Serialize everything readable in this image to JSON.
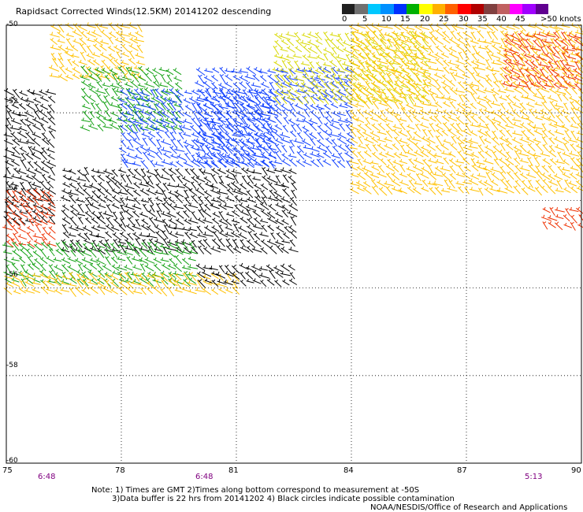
{
  "title": "Rapidsact Corrected Winds(12.5KM) 20141202 descending",
  "legend": {
    "colors": [
      "#202020",
      "#707070",
      "#00c8ff",
      "#0090ff",
      "#0030ff",
      "#00b000",
      "#ffff00",
      "#ffb000",
      "#ff6000",
      "#ff0000",
      "#b00000",
      "#804040",
      "#c06060",
      "#ff00ff",
      "#a000ff",
      "#600090"
    ],
    "labels": [
      "0",
      "5",
      "10",
      "15",
      "20",
      "25",
      "30",
      "35",
      "40",
      "45",
      ">50 knots"
    ]
  },
  "axes": {
    "x_ticks": [
      "75",
      "78",
      "81",
      "84",
      "87",
      "90"
    ],
    "y_ticks": [
      "-50",
      "-52",
      "-54",
      "-56",
      "-58",
      "-60"
    ],
    "times": [
      "6:48",
      "6:48",
      "5:13"
    ]
  },
  "notes": {
    "line1": "Note: 1) Times are GMT 2)Times along bottom correspond to measurement at -50S",
    "line2": "3)Data buffer is 22 hrs from 20141202 4) Black circles indicate possible contamination",
    "line3": "NOAA/NESDIS/Office of Research and Applications"
  },
  "chart_data": {
    "type": "wind-barb map",
    "x_range": [
      75,
      90
    ],
    "y_range": [
      -60,
      -50
    ],
    "x_ticks": [
      75,
      78,
      81,
      84,
      87,
      90
    ],
    "y_ticks": [
      -50,
      -52,
      -54,
      -56,
      -58,
      -60
    ],
    "grid": true,
    "regions": [
      {
        "lon": [
          75,
          76.2
        ],
        "lat": [
          -54.5,
          -51.5
        ],
        "speed_knots": 0
      },
      {
        "lon": [
          76.2,
          78.5
        ],
        "lat": [
          -51.2,
          -50.0
        ],
        "speed_knots": 25
      },
      {
        "lon": [
          77,
          79.5
        ],
        "lat": [
          -52.5,
          -51.0
        ],
        "speed_knots": 20
      },
      {
        "lon": [
          78,
          82
        ],
        "lat": [
          -53.2,
          -51.5
        ],
        "speed_knots": 15
      },
      {
        "lon": [
          80,
          84
        ],
        "lat": [
          -53.3,
          -51.0
        ],
        "speed_knots": 15
      },
      {
        "lon": [
          82,
          86
        ],
        "lat": [
          -51.8,
          -50.2
        ],
        "speed_knots": 22
      },
      {
        "lon": [
          84,
          90
        ],
        "lat": [
          -53.8,
          -50.0
        ],
        "speed_knots": 27
      },
      {
        "lon": [
          88,
          90
        ],
        "lat": [
          -51.5,
          -50.2
        ],
        "speed_knots": 33
      },
      {
        "lon": [
          75,
          76.2
        ],
        "lat": [
          -55.0,
          -53.8
        ],
        "speed_knots": 32
      },
      {
        "lon": [
          76.5,
          82.5
        ],
        "lat": [
          -55.2,
          -53.3
        ],
        "speed_knots": 0
      },
      {
        "lon": [
          75,
          80
        ],
        "lat": [
          -55.9,
          -55.0
        ],
        "speed_knots": 20
      },
      {
        "lon": [
          75,
          81
        ],
        "lat": [
          -56.2,
          -55.7
        ],
        "speed_knots": 26
      },
      {
        "lon": [
          80,
          82.5
        ],
        "lat": [
          -56.0,
          -55.5
        ],
        "speed_knots": 0
      },
      {
        "lon": [
          89,
          90
        ],
        "lat": [
          -54.7,
          -54.2
        ],
        "speed_knots": 33
      }
    ]
  }
}
